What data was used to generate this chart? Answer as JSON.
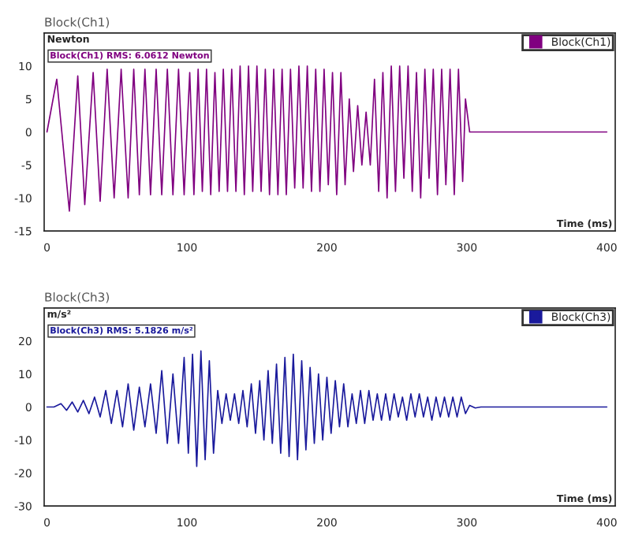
{
  "chart_data": [
    {
      "type": "line",
      "title": "Block(Ch1)",
      "ylabel": "Newton",
      "xlabel": "Time (ms)",
      "annotations": [
        "Block(Ch1) RMS: 6.0612 Newton"
      ],
      "legend": "top right",
      "grid": false,
      "xlim": [
        -2,
        406
      ],
      "ylim": [
        -15,
        15
      ],
      "xticks": [
        0,
        100,
        200,
        300,
        400
      ],
      "yticks": [
        -15,
        -10,
        -5,
        0,
        5,
        10
      ],
      "series": [
        {
          "name": "Block(Ch1)",
          "color": "#800080",
          "x": [
            0,
            7,
            16,
            22,
            27,
            33,
            38,
            43,
            48,
            53,
            58,
            62,
            66,
            70,
            74,
            78,
            82,
            86,
            90,
            94,
            98,
            102,
            105,
            108,
            111,
            114,
            117,
            120,
            123,
            126,
            129,
            132,
            135,
            138,
            141,
            144,
            147,
            150,
            153,
            156,
            159,
            162,
            165,
            168,
            171,
            174,
            177,
            180,
            183,
            186,
            189,
            192,
            195,
            198,
            201,
            204,
            207,
            210,
            213,
            216,
            219,
            222,
            225,
            228,
            231,
            234,
            237,
            240,
            243,
            246,
            249,
            252,
            255,
            258,
            261,
            264,
            267,
            270,
            273,
            276,
            279,
            282,
            285,
            288,
            291,
            294,
            297,
            299,
            302,
            400
          ],
          "values": [
            0,
            8,
            -12,
            8.5,
            -11,
            9,
            -10.5,
            9.5,
            -10,
            9.5,
            -10,
            9.5,
            -9.5,
            9.5,
            -9.5,
            9.5,
            -9.5,
            9.5,
            -9.5,
            9.5,
            -9.5,
            9,
            -9.5,
            9.5,
            -9,
            9.5,
            -9.5,
            9,
            -9,
            9.5,
            -9,
            9.5,
            -9,
            10,
            -9.5,
            10,
            -9,
            10,
            -9,
            9.5,
            -9.5,
            9.5,
            -9.5,
            9.5,
            -9.5,
            9.5,
            -8.5,
            10,
            -8.5,
            10,
            -9,
            9.5,
            -9,
            9.5,
            -8,
            9,
            -9.5,
            9,
            -8,
            5,
            -6,
            4,
            -5,
            3,
            -5,
            8,
            -9,
            9,
            -10,
            10,
            -9,
            10,
            -7,
            10,
            -9,
            9,
            -10,
            9.5,
            -7,
            9.5,
            -9.5,
            9.5,
            -8,
            9.5,
            -9.5,
            9.5,
            -7.5,
            5,
            0,
            0
          ]
        }
      ]
    },
    {
      "type": "line",
      "title": "Block(Ch3)",
      "ylabel": "m/s²",
      "xlabel": "Time (ms)",
      "annotations": [
        "Block(Ch3) RMS: 5.1826 m/s²"
      ],
      "legend": "top right",
      "grid": false,
      "xlim": [
        -2,
        406
      ],
      "ylim": [
        -30,
        30
      ],
      "xticks": [
        0,
        100,
        200,
        300,
        400
      ],
      "yticks": [
        -30,
        -20,
        -10,
        0,
        10,
        20
      ],
      "series": [
        {
          "name": "Block(Ch3)",
          "color": "#1a1a9c",
          "x": [
            0,
            5,
            10,
            14,
            18,
            22,
            26,
            30,
            34,
            38,
            42,
            46,
            50,
            54,
            58,
            62,
            66,
            70,
            74,
            78,
            82,
            86,
            90,
            94,
            98,
            101,
            104,
            107,
            110,
            113,
            116,
            119,
            122,
            125,
            128,
            131,
            134,
            137,
            140,
            143,
            146,
            149,
            152,
            155,
            158,
            161,
            164,
            167,
            170,
            173,
            176,
            179,
            182,
            185,
            188,
            191,
            194,
            197,
            200,
            203,
            206,
            209,
            212,
            215,
            218,
            221,
            224,
            227,
            230,
            233,
            236,
            239,
            242,
            245,
            248,
            251,
            254,
            257,
            260,
            263,
            266,
            269,
            272,
            275,
            278,
            281,
            284,
            287,
            290,
            293,
            296,
            299,
            302,
            306,
            310,
            400
          ],
          "values": [
            0,
            0,
            1,
            -1,
            1.5,
            -1.5,
            2,
            -2,
            3,
            -3,
            5,
            -5,
            5,
            -6,
            7,
            -7,
            6,
            -6,
            7,
            -8,
            11,
            -11,
            10,
            -11,
            15,
            -14,
            16,
            -18,
            17,
            -16,
            14,
            -14,
            5,
            -5,
            4,
            -4,
            4,
            -5,
            5,
            -6,
            7,
            -8,
            8,
            -10,
            11,
            -11,
            13,
            -14,
            15,
            -15,
            16,
            -16,
            14,
            -13,
            12,
            -11,
            10,
            -10,
            9,
            -8,
            8,
            -6,
            7,
            -6,
            4,
            -5,
            5,
            -5,
            5,
            -4,
            4,
            -4,
            4,
            -4,
            4,
            -3,
            3,
            -4,
            4,
            -3,
            4,
            -3,
            3,
            -4,
            3,
            -3,
            3,
            -3,
            3,
            -3,
            3,
            -2,
            0.5,
            -0.3,
            0,
            0
          ]
        }
      ]
    }
  ]
}
